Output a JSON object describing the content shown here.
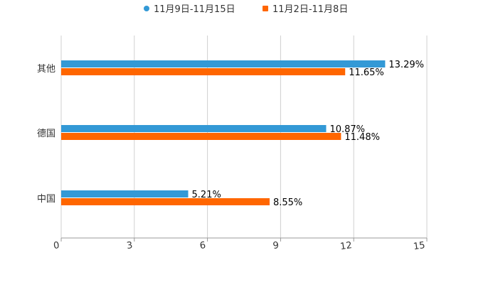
{
  "chart_data": {
    "type": "bar",
    "orientation": "horizontal",
    "categories": [
      "其他",
      "德国",
      "中国"
    ],
    "series": [
      {
        "name": "11月9日-11月15日",
        "color": "#3399d6",
        "values": [
          13.29,
          10.87,
          5.21
        ],
        "labels": [
          "13.29%",
          "10.87%",
          "5.21%"
        ]
      },
      {
        "name": "11月2日-11月8日",
        "color": "#ff6600",
        "values": [
          11.65,
          11.48,
          8.55
        ],
        "labels": [
          "11.65%",
          "11.48%",
          "8.55%"
        ]
      }
    ],
    "xlim": [
      0,
      15
    ],
    "xticks": [
      "0",
      "3",
      "6",
      "9",
      "12",
      "15"
    ],
    "grid": true,
    "legend": "top-center"
  }
}
